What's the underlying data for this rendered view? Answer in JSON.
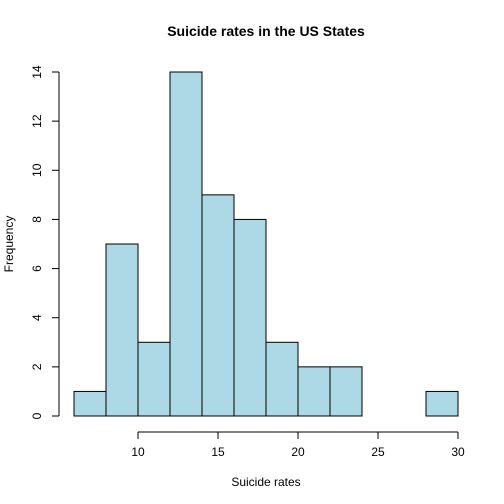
{
  "chart_data": {
    "type": "bar",
    "subtype": "histogram",
    "title": "Suicide rates in the US States",
    "xlabel": "Suicide rates",
    "ylabel": "Frequency",
    "bins": [
      {
        "x0": 6,
        "x1": 8,
        "count": 1
      },
      {
        "x0": 8,
        "x1": 10,
        "count": 7
      },
      {
        "x0": 10,
        "x1": 12,
        "count": 3
      },
      {
        "x0": 12,
        "x1": 14,
        "count": 14
      },
      {
        "x0": 14,
        "x1": 16,
        "count": 9
      },
      {
        "x0": 16,
        "x1": 18,
        "count": 8
      },
      {
        "x0": 18,
        "x1": 20,
        "count": 3
      },
      {
        "x0": 20,
        "x1": 22,
        "count": 2
      },
      {
        "x0": 22,
        "x1": 24,
        "count": 2
      },
      {
        "x0": 24,
        "x1": 26,
        "count": 0
      },
      {
        "x0": 26,
        "x1": 28,
        "count": 0
      },
      {
        "x0": 28,
        "x1": 30,
        "count": 1
      }
    ],
    "xticks": [
      10,
      15,
      20,
      25,
      30
    ],
    "yticks": [
      0,
      2,
      4,
      6,
      8,
      10,
      12,
      14
    ],
    "xlim": [
      6,
      30
    ],
    "ylim": [
      0,
      14
    ],
    "bar_color": "#add8e6",
    "grid": false,
    "legend": "none"
  }
}
